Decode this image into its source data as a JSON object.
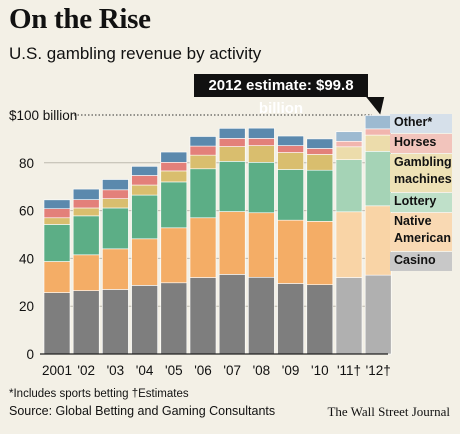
{
  "title": "On the Rise",
  "subtitle": "U.S. gambling revenue by activity",
  "callout": "2012 estimate: $99.8 billion",
  "footnote": "*Includes sports betting   †Estimates",
  "source": "Source: Global Betting and Gaming Consultants",
  "credit": "The Wall Street Journal",
  "legend": [
    {
      "label": "Other*",
      "color": "#5b89ad"
    },
    {
      "label": "Horses",
      "color": "#e3807a"
    },
    {
      "label": "Gambling machines",
      "color": "#d9be6e"
    },
    {
      "label": "Lottery",
      "color": "#5cae86"
    },
    {
      "label": "Native American",
      "color": "#f4ad66"
    },
    {
      "label": "Casino",
      "color": "#7e7e7e"
    }
  ],
  "chart_data": {
    "type": "bar",
    "stacked": true,
    "categories": [
      "2001",
      "'02",
      "'03",
      "'04",
      "'05",
      "'06",
      "'07",
      "'08",
      "'09",
      "'10",
      "'11†",
      "'12†"
    ],
    "estimated_categories": [
      "'11†",
      "'12†"
    ],
    "y_tick_labels": [
      "0",
      "20",
      "40",
      "60",
      "$100 billion"
    ],
    "y_ticks": [
      0,
      20,
      40,
      60,
      80,
      100
    ],
    "ylim": [
      0,
      100
    ],
    "reference_line": 100,
    "series": [
      {
        "name": "Casino",
        "color": "#7e7e7e",
        "estimate_color": "#b0b0b0",
        "values": [
          25.7,
          26.5,
          27.0,
          28.7,
          29.8,
          32.0,
          33.3,
          32.1,
          29.5,
          29.0,
          32.0,
          33.0
        ]
      },
      {
        "name": "Native American",
        "color": "#f4ad66",
        "estimate_color": "#f9d4a6",
        "values": [
          13.0,
          15.0,
          17.0,
          19.5,
          23.0,
          25.0,
          26.3,
          27.0,
          26.5,
          26.5,
          27.5,
          29.0
        ]
      },
      {
        "name": "Lottery",
        "color": "#5cae86",
        "estimate_color": "#a5d3b6",
        "values": [
          15.5,
          16.3,
          17.1,
          18.3,
          19.2,
          20.5,
          21.0,
          21.1,
          21.2,
          21.4,
          21.8,
          22.8
        ]
      },
      {
        "name": "Gambling machines",
        "color": "#d9be6e",
        "estimate_color": "#ecdcab",
        "values": [
          2.8,
          3.3,
          3.9,
          4.2,
          4.6,
          5.7,
          6.2,
          7.0,
          7.1,
          6.6,
          5.4,
          6.8
        ]
      },
      {
        "name": "Horses",
        "color": "#e3807a",
        "estimate_color": "#f1b5ae",
        "values": [
          3.8,
          3.5,
          3.7,
          4.0,
          3.6,
          3.8,
          3.4,
          3.0,
          2.9,
          2.5,
          2.3,
          2.6
        ]
      },
      {
        "name": "Other*",
        "color": "#5b89ad",
        "estimate_color": "#9dbad1",
        "values": [
          3.7,
          4.4,
          4.3,
          3.8,
          4.3,
          4.0,
          4.2,
          4.3,
          4.0,
          4.0,
          4.0,
          5.6
        ]
      }
    ]
  }
}
